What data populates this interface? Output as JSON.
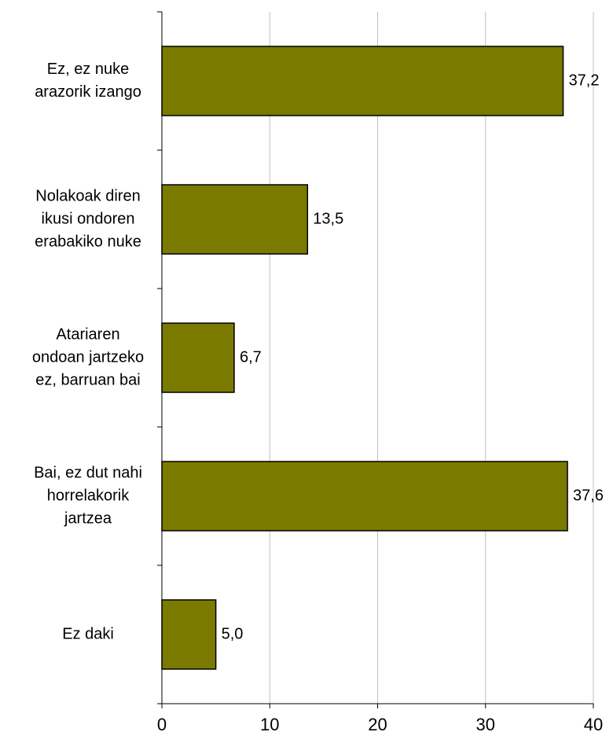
{
  "chart_data": {
    "type": "bar",
    "orientation": "horizontal",
    "categories": [
      [
        "Ez, ez nuke",
        "arazorik izango"
      ],
      [
        "Nolakoak diren",
        "ikusi ondoren",
        "erabakiko nuke"
      ],
      [
        "Atariaren",
        "ondoan jartzeko",
        "ez, barruan bai"
      ],
      [
        "Bai, ez dut nahi",
        "horrelakorik",
        "jartzea"
      ],
      [
        "Ez daki"
      ]
    ],
    "values": [
      37.2,
      13.5,
      6.7,
      37.6,
      5.0
    ],
    "value_labels": [
      "37,2",
      "13,5",
      "6,7",
      "37,6",
      "5,0"
    ],
    "x_ticks": [
      0,
      10,
      20,
      30,
      40
    ],
    "xlim": [
      0,
      40
    ],
    "grid": "vertical",
    "bar_color": "#7a7a00",
    "title": "",
    "xlabel": "",
    "ylabel": ""
  }
}
